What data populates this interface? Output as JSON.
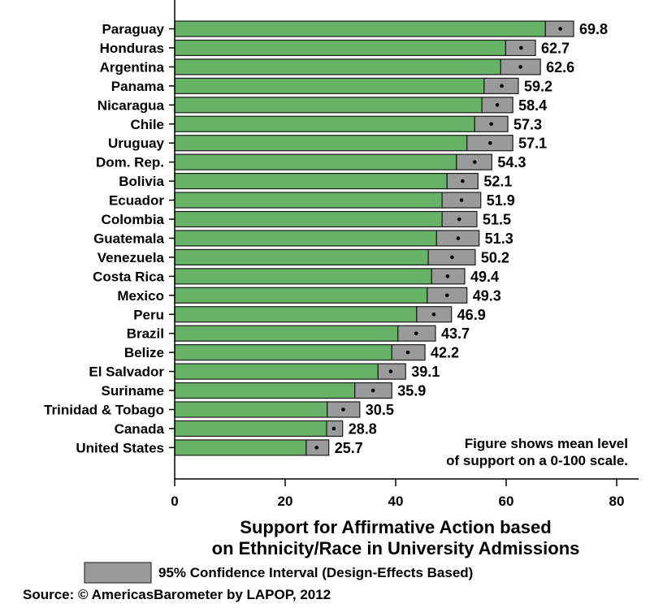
{
  "chart_data": {
    "type": "bar",
    "orientation": "horizontal",
    "categories": [
      "Paraguay",
      "Honduras",
      "Argentina",
      "Panama",
      "Nicaragua",
      "Chile",
      "Uruguay",
      "Dom. Rep.",
      "Bolivia",
      "Ecuador",
      "Colombia",
      "Guatemala",
      "Venezuela",
      "Costa Rica",
      "Mexico",
      "Peru",
      "Brazil",
      "Belize",
      "El Salvador",
      "Suriname",
      "Trinidad & Tobago",
      "Canada",
      "United States"
    ],
    "values": [
      69.8,
      62.7,
      62.6,
      59.2,
      58.4,
      57.3,
      57.1,
      54.3,
      52.1,
      51.9,
      51.5,
      51.3,
      50.2,
      49.4,
      49.3,
      46.9,
      43.7,
      42.2,
      39.1,
      35.9,
      30.5,
      28.8,
      25.7
    ],
    "value_labels": [
      "69.8",
      "62.7",
      "62.6",
      "59.2",
      "58.4",
      "57.3",
      "57.1",
      "54.3",
      "52.1",
      "51.9",
      "51.5",
      "51.3",
      "50.2",
      "49.4",
      "49.3",
      "46.9",
      "43.7",
      "42.2",
      "39.1",
      "35.9",
      "30.5",
      "28.8",
      "25.7"
    ],
    "ci_lower": [
      67.1,
      59.9,
      59.0,
      56.0,
      55.6,
      54.3,
      52.9,
      51.0,
      49.3,
      48.4,
      48.4,
      47.4,
      45.9,
      46.5,
      45.7,
      43.8,
      40.4,
      39.3,
      36.8,
      32.6,
      27.6,
      27.5,
      23.8
    ],
    "ci_upper": [
      72.2,
      65.3,
      66.2,
      62.2,
      61.2,
      60.3,
      61.2,
      57.4,
      54.9,
      55.4,
      54.7,
      55.1,
      54.4,
      52.5,
      52.9,
      50.1,
      47.2,
      45.3,
      41.8,
      39.3,
      33.5,
      30.4,
      27.9
    ],
    "xlabel": "Support for Affirmative Action based on Ethnicity/Race in University Admissions",
    "xlabel_lines": [
      "Support for Affirmative Action based",
      "on Ethnicity/Race in University Admissions"
    ],
    "ylabel": "",
    "xlim": [
      0,
      84
    ],
    "xticks": [
      0,
      20,
      40,
      60,
      80
    ],
    "xtick_labels": [
      "0",
      "20",
      "40",
      "60",
      "80"
    ],
    "grid": false,
    "annotation_lines": [
      "Figure shows mean level",
      "of support on a 0-100 scale."
    ],
    "legend": {
      "entries": [
        "95% Confidence Interval (Design-Effects Based)"
      ],
      "placement": "bottom"
    },
    "source": "Source: © AmericasBarometer by LAPOP, 2012",
    "colors": {
      "bar": "#66b266",
      "ci": "#9a9a9a",
      "outline": "#1a1a1a",
      "point": "#000000"
    }
  }
}
